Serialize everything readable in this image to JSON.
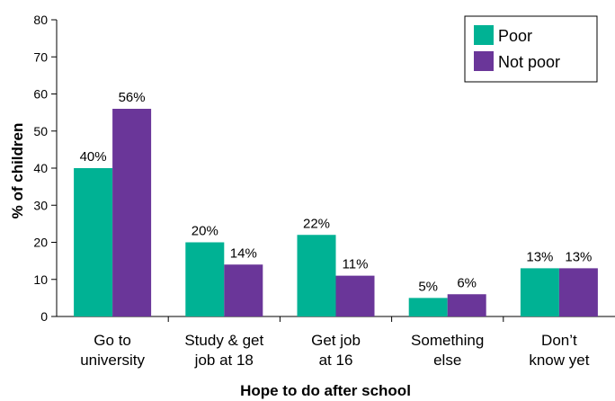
{
  "chart_data": {
    "type": "bar",
    "title": "",
    "xlabel": "Hope to do after school",
    "ylabel": "% of children",
    "ylim": [
      0,
      80
    ],
    "yticks": [
      "0",
      "10",
      "20",
      "30",
      "40",
      "50",
      "60",
      "70",
      "80"
    ],
    "categories": [
      [
        "Go to",
        "university"
      ],
      [
        "Study & get",
        "job at 18"
      ],
      [
        "Get job",
        "at 16"
      ],
      [
        "Something",
        "else"
      ],
      [
        "Don’t",
        "know yet"
      ]
    ],
    "series": [
      {
        "name": "Poor",
        "color": "#00b294",
        "values": [
          40,
          20,
          22,
          5,
          13
        ],
        "labels": [
          "40%",
          "20%",
          "22%",
          "5%",
          "13%"
        ]
      },
      {
        "name": "Not poor",
        "color": "#6a3699",
        "values": [
          56,
          14,
          11,
          6,
          13
        ],
        "labels": [
          "56%",
          "14%",
          "11%",
          "6%",
          "13%"
        ]
      }
    ],
    "grid": false,
    "legend": "top-right"
  }
}
